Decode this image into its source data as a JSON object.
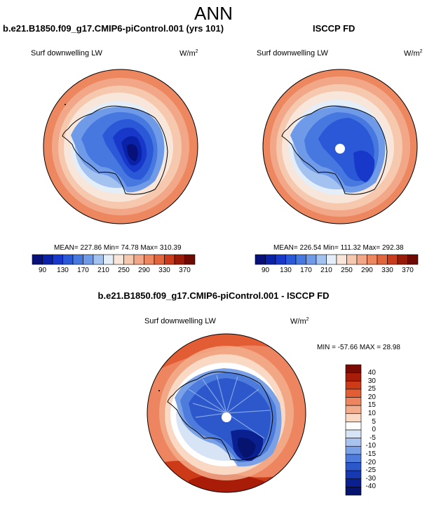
{
  "figure_title": "ANN",
  "panels": [
    {
      "title": "b.e21.B1850.f09_g17.CMIP6-piControl.001 (yrs 101)",
      "variable": "Surf downwelling LW",
      "units_base": "W/m",
      "units_exp": "2",
      "stats": "MEAN= 227.86  Min=  74.78  Max= 310.39"
    },
    {
      "title": "ISCCP FD",
      "variable": "Surf downwelling LW",
      "units_base": "W/m",
      "units_exp": "2",
      "stats": "MEAN= 226.54  Min= 111.32  Max= 292.38"
    },
    {
      "title": "b.e21.B1850.f09_g17.CMIP6-piControl.001 - ISCCP FD",
      "variable": "Surf downwelling LW",
      "units_base": "W/m",
      "units_exp": "2",
      "stats": "MIN = -57.66 MAX =  28.98"
    }
  ],
  "chart_data": [
    {
      "type": "heatmap",
      "projection": "south-polar stereographic",
      "title": "b.e21.B1850.f09_g17.CMIP6-piControl.001 (yrs 101)",
      "variable": "Surf downwelling LW",
      "units": "W/m2",
      "mean": 227.86,
      "min": 74.78,
      "max": 310.39,
      "colorbar_levels": [
        90,
        110,
        130,
        150,
        170,
        190,
        210,
        230,
        250,
        270,
        290,
        310,
        330,
        350,
        370
      ],
      "colorbar_labels": [
        "90",
        "130",
        "170",
        "210",
        "250",
        "290",
        "330",
        "370"
      ]
    },
    {
      "type": "heatmap",
      "projection": "south-polar stereographic",
      "title": "ISCCP FD",
      "variable": "Surf downwelling LW",
      "units": "W/m2",
      "mean": 226.54,
      "min": 111.32,
      "max": 292.38,
      "colorbar_levels": [
        90,
        110,
        130,
        150,
        170,
        190,
        210,
        230,
        250,
        270,
        290,
        310,
        330,
        350,
        370
      ],
      "colorbar_labels": [
        "90",
        "130",
        "170",
        "210",
        "250",
        "290",
        "330",
        "370"
      ]
    },
    {
      "type": "heatmap",
      "projection": "south-polar stereographic",
      "title": "b.e21.B1850.f09_g17.CMIP6-piControl.001 - ISCCP FD",
      "variable": "Surf downwelling LW",
      "units": "W/m2",
      "min": -57.66,
      "max": 28.98,
      "colorbar_levels": [
        40,
        30,
        25,
        20,
        15,
        10,
        5,
        0,
        -5,
        -10,
        -15,
        -20,
        -25,
        -30,
        -40
      ],
      "colorbar_labels": [
        "40",
        "30",
        "25",
        "20",
        "15",
        "10",
        "5",
        "0",
        "-5",
        "-10",
        "-15",
        "-20",
        "-25",
        "-30",
        "-40"
      ]
    }
  ],
  "colors": {
    "abs_palette": [
      "#08107a",
      "#0a22a8",
      "#1738c8",
      "#2a58d6",
      "#4678e0",
      "#6e9ae8",
      "#a4c2ef",
      "#e4eef8",
      "#f9e6da",
      "#f6c8ad",
      "#f2a888",
      "#ec8760",
      "#e2653c",
      "#cc3a1c",
      "#9a1a0a",
      "#6e0a02"
    ],
    "diff_palette": [
      "#7a0a02",
      "#a81c08",
      "#cc3a18",
      "#e25c34",
      "#ec8560",
      "#f3ad8c",
      "#f9d8c4",
      "#ffffff",
      "#d6e4f6",
      "#a8c4ee",
      "#7aa0e6",
      "#4e7cdc",
      "#2c58cc",
      "#1638b0",
      "#0a2090",
      "#061470"
    ]
  }
}
